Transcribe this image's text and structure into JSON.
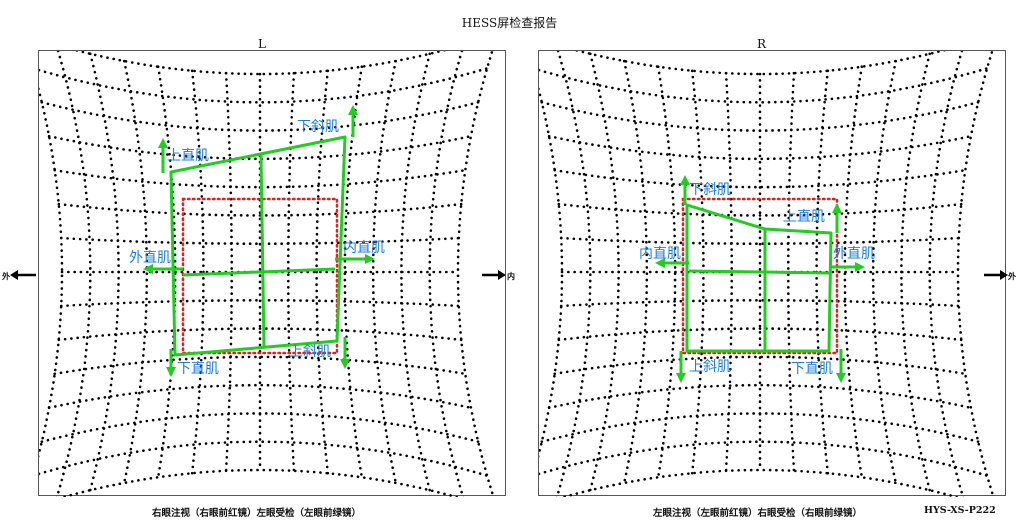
{
  "report_title": "HESS屏检查报告",
  "model_code": "HYS-XS-P222",
  "colors": {
    "grid_dot": "#000000",
    "reference": "#e02020",
    "measured": "#22cc22",
    "muscle_label": "#1f7fd6"
  },
  "direction_labels": {
    "outer": "外",
    "inner": "内"
  },
  "panels": [
    {
      "eye": "L",
      "caption": "右眼注视（右眼前红镜）左眼受检（左眼前绿镜）",
      "muscles": {
        "top_left": "上直肌",
        "top_right": "下斜肌",
        "middle_left": "外直肌",
        "middle_right": "内直肌",
        "bottom_left": "下直肌",
        "bottom_right": "上斜肌"
      }
    },
    {
      "eye": "R",
      "caption": "左眼注视（左眼前红镜）右眼受检（右眼前绿镜）",
      "muscles": {
        "top_left": "下斜肌",
        "top_right": "上直肌",
        "middle_left": "内直肌",
        "middle_right": "外直肌",
        "bottom_left": "上斜肌",
        "bottom_right": "下直肌"
      }
    }
  ]
}
